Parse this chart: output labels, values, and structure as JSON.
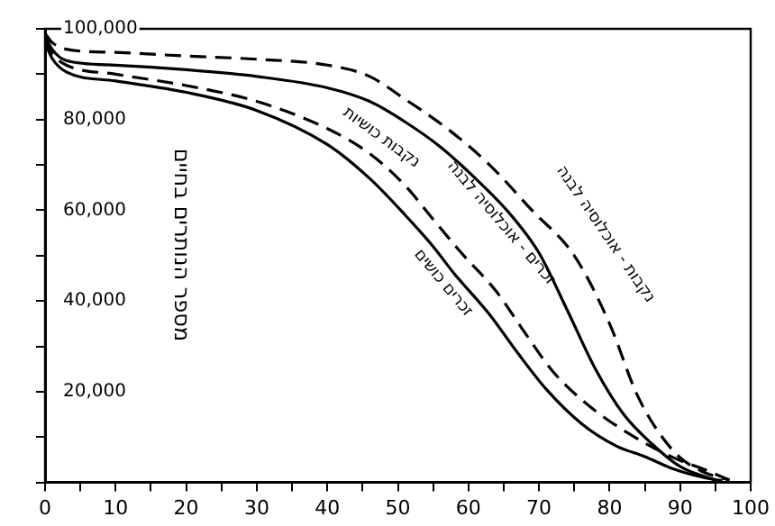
{
  "chart_data": {
    "type": "line",
    "ylabel": "מספר הנותרים בחיים",
    "xlim": [
      0,
      100
    ],
    "ylim": [
      0,
      100000
    ],
    "xticks": [
      0,
      {
        "value": 5,
        "label": null
      },
      10,
      {
        "value": 15,
        "label": null
      },
      20,
      {
        "value": 25,
        "label": null
      },
      30,
      {
        "value": 35,
        "label": null
      },
      40,
      {
        "value": 45,
        "label": null
      },
      50,
      {
        "value": 55,
        "label": null
      },
      60,
      {
        "value": 65,
        "label": null
      },
      70,
      {
        "value": 75,
        "label": null
      },
      80,
      {
        "value": 85,
        "label": null
      },
      90,
      {
        "value": 95,
        "label": null
      },
      100
    ],
    "yticks": [
      {
        "value": 0,
        "label": null
      },
      {
        "value": 10000,
        "label": null
      },
      {
        "value": 20000,
        "label": "20,000"
      },
      {
        "value": 30000,
        "label": null
      },
      {
        "value": 40000,
        "label": "40,000"
      },
      {
        "value": 50000,
        "label": null
      },
      {
        "value": 60000,
        "label": "60,000"
      },
      {
        "value": 70000,
        "label": null
      },
      {
        "value": 80000,
        "label": "80,000"
      },
      {
        "value": 90000,
        "label": null
      },
      {
        "value": 100000,
        "label": "100,000"
      }
    ],
    "grid": false,
    "legend": false,
    "marker": "none",
    "series": [
      {
        "name": "נקבות - אוכלוסיה לבנה",
        "color": "#000000",
        "line_style": "dashed",
        "x": [
          0,
          1,
          3,
          10,
          20,
          30,
          40,
          46,
          51,
          57,
          63,
          69,
          75,
          80,
          84,
          89,
          93,
          97
        ],
        "values": [
          99000,
          97000,
          95500,
          94800,
          94000,
          93300,
          92000,
          89500,
          84500,
          78000,
          70000,
          60000,
          50000,
          35000,
          19000,
          7000,
          2500,
          500
        ]
      },
      {
        "name": "זכרים - אוכלוסיה לבנה",
        "color": "#000000",
        "line_style": "solid",
        "x": [
          0,
          1,
          3,
          10,
          20,
          30,
          40,
          46,
          51,
          56,
          61,
          66,
          70,
          74,
          78,
          82,
          86,
          90,
          95
        ],
        "values": [
          98500,
          95500,
          93000,
          92000,
          91000,
          89500,
          87000,
          84000,
          79500,
          74000,
          67000,
          59000,
          50600,
          38000,
          25000,
          15000,
          8500,
          3500,
          500
        ]
      },
      {
        "name": "נקבות כושיות",
        "color": "#000000",
        "line_style": "dashed",
        "x": [
          0,
          1,
          3,
          10,
          20,
          30,
          40,
          46,
          51,
          55,
          59,
          64,
          68,
          72,
          77,
          83,
          89,
          94,
          97
        ],
        "values": [
          97500,
          94500,
          92000,
          90000,
          87500,
          84000,
          78000,
          72500,
          65500,
          58000,
          50600,
          42000,
          33000,
          24400,
          17000,
          10500,
          5500,
          2500,
          500
        ]
      },
      {
        "name": "זכרים כושים",
        "color": "#000000",
        "line_style": "solid",
        "x": [
          0,
          1,
          3,
          10,
          20,
          30,
          40,
          46,
          51,
          55,
          58,
          63,
          67,
          71,
          76,
          81,
          85,
          89,
          93,
          96
        ],
        "values": [
          97000,
          93500,
          90500,
          88500,
          86000,
          82000,
          74500,
          67000,
          59000,
          52000,
          46000,
          37000,
          28500,
          20600,
          13000,
          8000,
          5700,
          3000,
          1200,
          300
        ]
      }
    ]
  }
}
